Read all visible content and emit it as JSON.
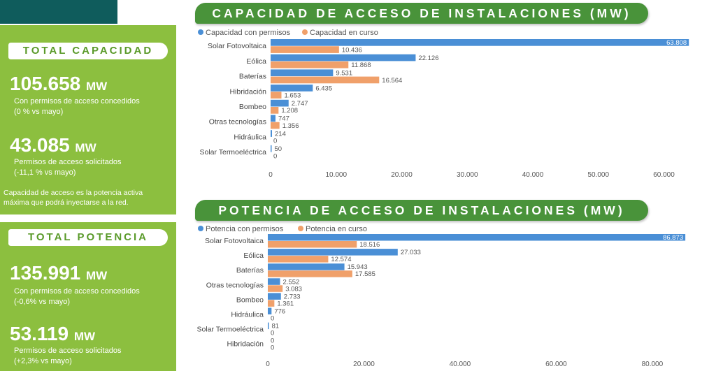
{
  "colors": {
    "blue": "#4a8fd6",
    "orange": "#f0a06a",
    "green": "#8cbf3f",
    "dark_green": "#49933a",
    "teal": "#0f5c5c"
  },
  "capacidad": {
    "header": "TOTAL CAPACIDAD",
    "granted_value": "105.658",
    "granted_unit": "MW",
    "granted_line1": "Con permisos de acceso concedidos",
    "granted_line2": "(0 % vs mayo)",
    "requested_value": "43.085",
    "requested_unit": "MW",
    "requested_line1": "Permisos de acceso solicitados",
    "requested_line2": "(-11,1 % vs mayo)",
    "note_line1": "Capacidad de acceso es la potencia activa",
    "note_line2": "máxima que podrá inyectarse a la red."
  },
  "potencia": {
    "header": "TOTAL POTENCIA",
    "granted_value": "135.991",
    "granted_unit": "MW",
    "granted_line1": "Con permisos de acceso concedidos",
    "granted_line2": "(-0,6% vs mayo)",
    "requested_value": "53.119",
    "requested_unit": "MW",
    "requested_line1": "Permisos de acceso solicitados",
    "requested_line2": "(+2,3% vs mayo)"
  },
  "chart_data": [
    {
      "type": "bar",
      "orientation": "horizontal",
      "title": "CAPACIDAD DE ACCESO DE INSTALACIONES (MW)",
      "categories": [
        "Solar Fotovoltaica",
        "Eólica",
        "Baterías",
        "Hibridación",
        "Bombeo",
        "Otras tecnologías",
        "Hidráulica",
        "Solar Termoeléctrica"
      ],
      "series": [
        {
          "name": "Capacidad con permisos",
          "values": [
            63808,
            22126,
            9531,
            6435,
            2747,
            747,
            214,
            50
          ],
          "labels": [
            "63.808",
            "22.126",
            "9.531",
            "6.435",
            "2.747",
            "747",
            "214",
            "50"
          ]
        },
        {
          "name": "Capacidad en curso",
          "values": [
            10436,
            11868,
            16564,
            1653,
            1208,
            1356,
            0,
            0
          ],
          "labels": [
            "10.436",
            "11.868",
            "16.564",
            "1.653",
            "1.208",
            "1.356",
            "0",
            "0"
          ]
        }
      ],
      "xlim": [
        0,
        64000
      ],
      "ticks": [
        0,
        10000,
        20000,
        30000,
        40000,
        50000,
        60000
      ],
      "tick_labels": [
        "0",
        "10.000",
        "20.000",
        "30.000",
        "40.000",
        "50.000",
        "60.000"
      ],
      "legend": "top-left",
      "grid": false
    },
    {
      "type": "bar",
      "orientation": "horizontal",
      "title": "POTENCIA DE ACCESO DE INSTALACIONES (MW)",
      "categories": [
        "Solar Fotovoltaica",
        "Eólica",
        "Baterías",
        "Otras tecnologías",
        "Bombeo",
        "Hidráulica",
        "Solar Termoeléctrica",
        "Hibridación"
      ],
      "series": [
        {
          "name": "Potencia con permisos",
          "values": [
            86873,
            27033,
            15943,
            2552,
            2733,
            776,
            81,
            0
          ],
          "labels": [
            "86.873",
            "27.033",
            "15.943",
            "2.552",
            "2.733",
            "776",
            "81",
            "0"
          ]
        },
        {
          "name": "Potencia en curso",
          "values": [
            18516,
            12574,
            17585,
            3083,
            1361,
            0,
            0,
            0
          ],
          "labels": [
            "18.516",
            "12.574",
            "17.585",
            "3.083",
            "1.361",
            "0",
            "0",
            "0"
          ]
        }
      ],
      "xlim": [
        0,
        87000
      ],
      "ticks": [
        0,
        20000,
        40000,
        60000,
        80000
      ],
      "tick_labels": [
        "0",
        "20.000",
        "40.000",
        "60.000",
        "80.000"
      ],
      "legend": "top-left",
      "grid": false
    }
  ]
}
